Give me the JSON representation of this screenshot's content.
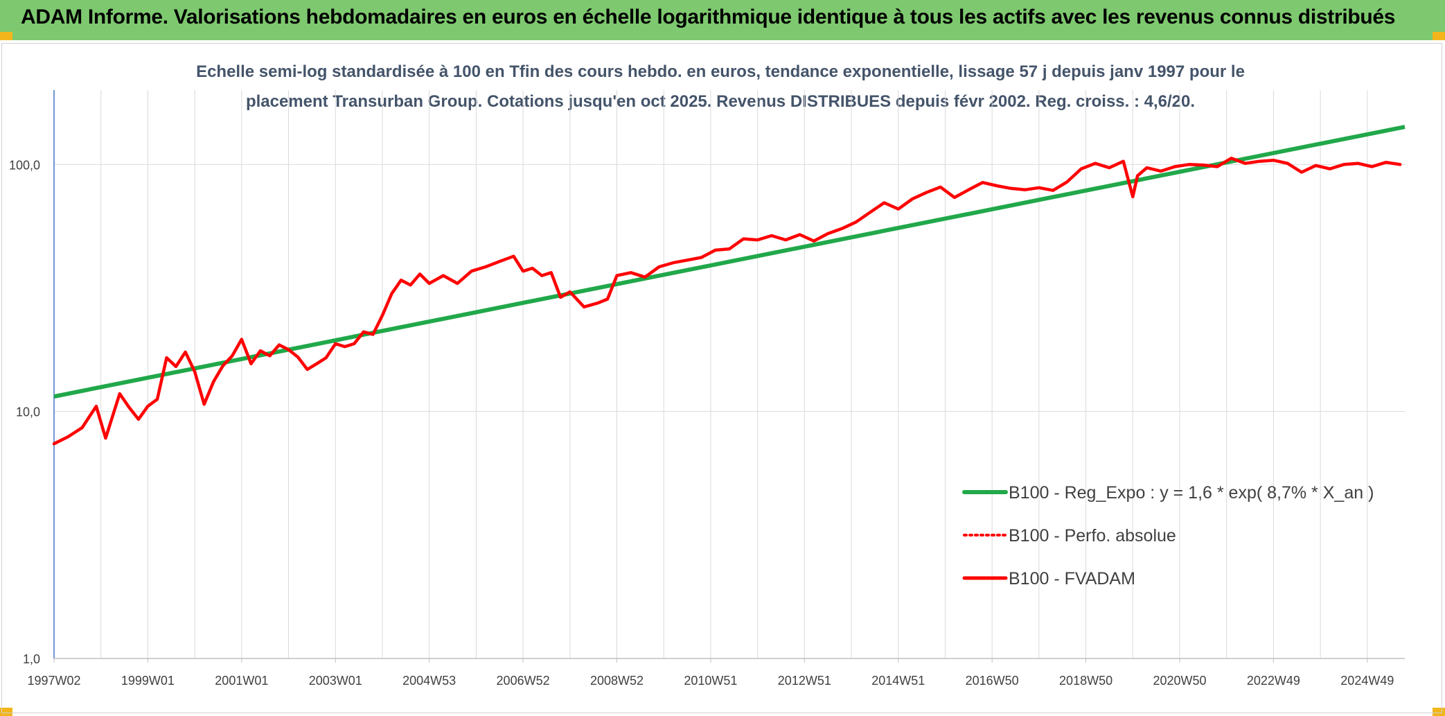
{
  "header": {
    "title": "ADAM Informe. Valorisations hebdomadaires en euros en échelle logarithmique identique à tous les actifs avec les revenus connus distribués"
  },
  "colors": {
    "banner": "#7ec96f",
    "corner": "#f2b51c",
    "regression": "#21a84a",
    "fvadam": "#ff0000",
    "perfo": "#ff0000",
    "grid": "#d9d9d9",
    "axis": "#4472c4"
  },
  "chart_data": {
    "type": "line",
    "title_line1": "Echelle semi-log standardisée à 100 en Tfin des cours hebdo. en euros, tendance exponentielle, lissage 57 j depuis janv 1997 pour le",
    "title_line2": "placement Transurban Group. Cotations jusqu'en oct 2025. Revenus DISTRIBUES depuis févr 2002. Reg. croiss. : 4,6/20.",
    "y_scale": "log",
    "ylim": [
      1,
      200
    ],
    "y_ticks": [
      1,
      10,
      100
    ],
    "y_tick_labels": [
      "1,0",
      "10,0",
      "100,0"
    ],
    "xlim": [
      1997.0,
      2025.8
    ],
    "x_ticks": [
      1997.0,
      1999.0,
      2001.0,
      2003.0,
      2005.0,
      2007.0,
      2009.0,
      2011.0,
      2013.0,
      2015.0,
      2017.0,
      2019.0,
      2021.0,
      2023.0,
      2025.0
    ],
    "x_tick_labels": [
      "1997W02",
      "1999W01",
      "2001W01",
      "2003W01",
      "2004W53",
      "2006W52",
      "2008W52",
      "2010W51",
      "2012W51",
      "2014W51",
      "2016W50",
      "2018W50",
      "2020W50",
      "2022W49",
      "2024W49"
    ],
    "grid": true,
    "legend_position": "right",
    "series": [
      {
        "name": "B100 - Reg_Expo : y = 1,6 * exp( 8,7% *  X_an )",
        "style": "solid-thick",
        "x": [
          1997.0,
          2025.8
        ],
        "values": [
          11.5,
          142
        ]
      },
      {
        "name": "B100 - Perfo. absolue",
        "style": "dotted",
        "x": [],
        "values": []
      },
      {
        "name": "B100 - FVADAM",
        "style": "solid",
        "x": [
          1997.0,
          1997.3,
          1997.6,
          1997.9,
          1998.1,
          1998.4,
          1998.6,
          1998.8,
          1999.0,
          1999.2,
          1999.4,
          1999.6,
          1999.8,
          2000.0,
          2000.2,
          2000.4,
          2000.6,
          2000.8,
          2001.0,
          2001.2,
          2001.4,
          2001.6,
          2001.8,
          2002.0,
          2002.2,
          2002.4,
          2002.6,
          2002.8,
          2003.0,
          2003.2,
          2003.4,
          2003.6,
          2003.8,
          2004.0,
          2004.2,
          2004.4,
          2004.6,
          2004.8,
          2005.0,
          2005.3,
          2005.6,
          2005.9,
          2006.2,
          2006.5,
          2006.8,
          2007.0,
          2007.2,
          2007.4,
          2007.6,
          2007.8,
          2008.0,
          2008.3,
          2008.6,
          2008.8,
          2009.0,
          2009.3,
          2009.6,
          2009.9,
          2010.2,
          2010.5,
          2010.8,
          2011.1,
          2011.4,
          2011.7,
          2012.0,
          2012.3,
          2012.6,
          2012.9,
          2013.2,
          2013.5,
          2013.8,
          2014.1,
          2014.4,
          2014.7,
          2015.0,
          2015.3,
          2015.6,
          2015.9,
          2016.2,
          2016.5,
          2016.8,
          2017.1,
          2017.4,
          2017.7,
          2018.0,
          2018.3,
          2018.6,
          2018.9,
          2019.2,
          2019.5,
          2019.8,
          2020.0,
          2020.1,
          2020.3,
          2020.6,
          2020.9,
          2021.2,
          2021.5,
          2021.8,
          2022.1,
          2022.4,
          2022.7,
          2023.0,
          2023.3,
          2023.6,
          2023.9,
          2024.2,
          2024.5,
          2024.8,
          2025.1,
          2025.4,
          2025.7
        ],
        "values": [
          7.4,
          7.9,
          8.6,
          10.5,
          7.8,
          11.8,
          10.4,
          9.3,
          10.5,
          11.2,
          16.5,
          15.2,
          17.4,
          14.5,
          10.7,
          13.2,
          15.3,
          16.8,
          19.6,
          15.6,
          17.6,
          16.8,
          18.6,
          17.8,
          16.6,
          14.8,
          15.6,
          16.5,
          18.8,
          18.3,
          18.8,
          21.0,
          20.5,
          24.5,
          30.0,
          34.0,
          32.5,
          36.0,
          33.0,
          35.5,
          33.0,
          37.0,
          38.5,
          40.5,
          42.5,
          37.0,
          38.0,
          35.5,
          36.5,
          29.0,
          30.5,
          26.5,
          27.5,
          28.5,
          35.5,
          36.5,
          35.0,
          38.5,
          40.0,
          41.0,
          42.0,
          45.0,
          45.5,
          50.0,
          49.5,
          51.5,
          49.5,
          52.0,
          49.0,
          52.5,
          55.0,
          58.5,
          64.0,
          70.0,
          66.0,
          72.5,
          77.0,
          81.0,
          73.5,
          79.0,
          84.5,
          82.0,
          80.0,
          79.0,
          80.5,
          78.5,
          85.0,
          96.0,
          101.0,
          97.0,
          103.0,
          74.0,
          90.0,
          97.0,
          94.0,
          98.0,
          100.0,
          99.5,
          98.0,
          106.0,
          101.0,
          103.0,
          104.0,
          101.0,
          93.0,
          99.0,
          96.0,
          100.0,
          101.0,
          98.0,
          102.0,
          100.0
        ]
      }
    ]
  }
}
